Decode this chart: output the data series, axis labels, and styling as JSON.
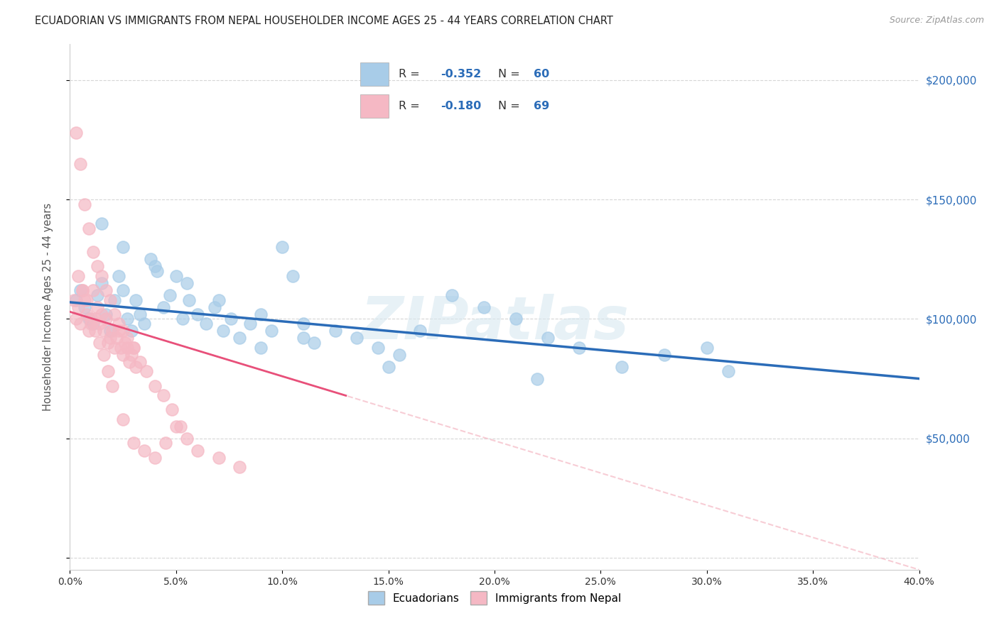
{
  "title": "ECUADORIAN VS IMMIGRANTS FROM NEPAL HOUSEHOLDER INCOME AGES 25 - 44 YEARS CORRELATION CHART",
  "source": "Source: ZipAtlas.com",
  "ylabel": "Householder Income Ages 25 - 44 years",
  "y_ticks": [
    0,
    50000,
    100000,
    150000,
    200000
  ],
  "y_tick_labels": [
    "",
    "$50,000",
    "$100,000",
    "$150,000",
    "$200,000"
  ],
  "x_range": [
    0,
    0.4
  ],
  "y_range": [
    -5000,
    215000
  ],
  "blue_R": "-0.352",
  "blue_N": "60",
  "pink_R": "-0.180",
  "pink_N": "69",
  "blue_color": "#a8cce8",
  "pink_color": "#f5b8c4",
  "blue_line_color": "#2b6cb8",
  "pink_line_color": "#e8507a",
  "pink_dash_color": "#f5b8c4",
  "legend_label_blue": "Ecuadorians",
  "legend_label_pink": "Immigrants from Nepal",
  "watermark": "ZIPatlas",
  "blue_intercept": 107000,
  "blue_slope": -80000,
  "pink_intercept": 103000,
  "pink_slope": -270000,
  "blue_scatter_x": [
    0.003,
    0.005,
    0.007,
    0.009,
    0.011,
    0.013,
    0.015,
    0.017,
    0.019,
    0.021,
    0.023,
    0.025,
    0.027,
    0.029,
    0.031,
    0.033,
    0.035,
    0.038,
    0.041,
    0.044,
    0.047,
    0.05,
    0.053,
    0.056,
    0.06,
    0.064,
    0.068,
    0.072,
    0.076,
    0.08,
    0.085,
    0.09,
    0.095,
    0.1,
    0.105,
    0.11,
    0.115,
    0.125,
    0.135,
    0.145,
    0.155,
    0.165,
    0.18,
    0.195,
    0.21,
    0.225,
    0.24,
    0.26,
    0.28,
    0.3,
    0.015,
    0.025,
    0.04,
    0.055,
    0.07,
    0.09,
    0.11,
    0.15,
    0.22,
    0.31
  ],
  "blue_scatter_y": [
    108000,
    112000,
    105000,
    100000,
    98000,
    110000,
    115000,
    102000,
    95000,
    108000,
    118000,
    112000,
    100000,
    95000,
    108000,
    102000,
    98000,
    125000,
    120000,
    105000,
    110000,
    118000,
    100000,
    108000,
    102000,
    98000,
    105000,
    95000,
    100000,
    92000,
    98000,
    88000,
    95000,
    130000,
    118000,
    98000,
    90000,
    95000,
    92000,
    88000,
    85000,
    95000,
    110000,
    105000,
    100000,
    92000,
    88000,
    80000,
    85000,
    88000,
    140000,
    130000,
    122000,
    115000,
    108000,
    102000,
    92000,
    80000,
    75000,
    78000
  ],
  "pink_scatter_x": [
    0.002,
    0.003,
    0.004,
    0.005,
    0.006,
    0.007,
    0.008,
    0.009,
    0.01,
    0.011,
    0.012,
    0.013,
    0.014,
    0.015,
    0.016,
    0.017,
    0.018,
    0.019,
    0.02,
    0.021,
    0.022,
    0.023,
    0.024,
    0.025,
    0.026,
    0.027,
    0.028,
    0.029,
    0.03,
    0.031,
    0.003,
    0.005,
    0.007,
    0.009,
    0.011,
    0.013,
    0.015,
    0.017,
    0.019,
    0.021,
    0.023,
    0.025,
    0.027,
    0.03,
    0.033,
    0.036,
    0.04,
    0.044,
    0.048,
    0.052,
    0.004,
    0.006,
    0.008,
    0.01,
    0.012,
    0.014,
    0.016,
    0.018,
    0.02,
    0.025,
    0.03,
    0.035,
    0.04,
    0.045,
    0.05,
    0.055,
    0.06,
    0.07,
    0.08
  ],
  "pink_scatter_y": [
    108000,
    100000,
    105000,
    98000,
    112000,
    108000,
    102000,
    95000,
    98000,
    112000,
    100000,
    105000,
    98000,
    102000,
    95000,
    100000,
    90000,
    92000,
    95000,
    88000,
    92000,
    95000,
    88000,
    85000,
    90000,
    88000,
    82000,
    85000,
    88000,
    80000,
    178000,
    165000,
    148000,
    138000,
    128000,
    122000,
    118000,
    112000,
    108000,
    102000,
    98000,
    95000,
    92000,
    88000,
    82000,
    78000,
    72000,
    68000,
    62000,
    55000,
    118000,
    112000,
    108000,
    100000,
    95000,
    90000,
    85000,
    78000,
    72000,
    58000,
    48000,
    45000,
    42000,
    48000,
    55000,
    50000,
    45000,
    42000,
    38000
  ]
}
